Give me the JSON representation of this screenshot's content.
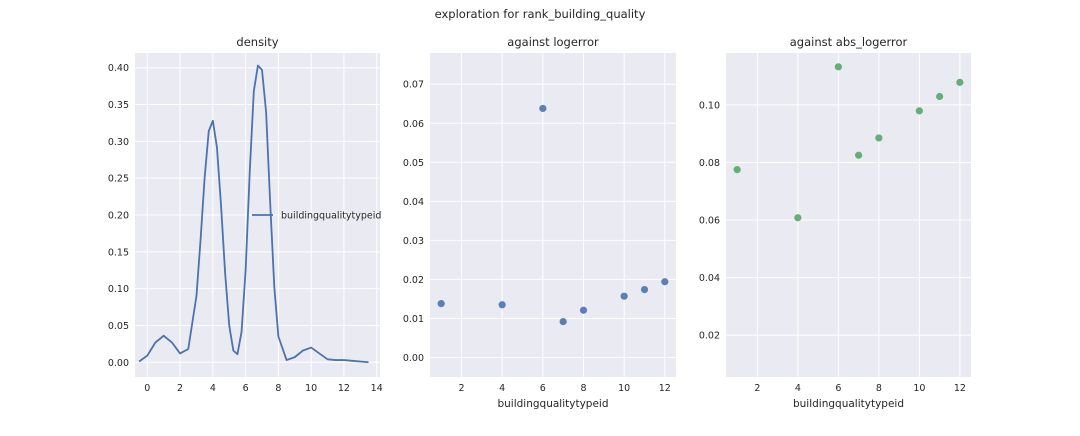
{
  "figure": {
    "suptitle": "exploration for rank_building_quality"
  },
  "chart_data": [
    {
      "type": "line",
      "title": "density",
      "xlabel": "",
      "ylabel": "",
      "xlim": [
        -0.75,
        14.2
      ],
      "ylim": [
        -0.02,
        0.42
      ],
      "xticks": [
        0,
        2,
        4,
        6,
        8,
        10,
        12,
        14
      ],
      "yticks": [
        0.0,
        0.05,
        0.1,
        0.15,
        0.2,
        0.25,
        0.3,
        0.35,
        0.4
      ],
      "ytick_labels": [
        "0.00",
        "0.05",
        "0.10",
        "0.15",
        "0.20",
        "0.25",
        "0.30",
        "0.35",
        "0.40"
      ],
      "legend": {
        "placement": "center-right",
        "entries": [
          "buildingqualitytypeid"
        ]
      },
      "grid": true,
      "series": [
        {
          "name": "buildingqualitytypeid",
          "color": "#4c72b0",
          "x": [
            -0.5,
            0.0,
            0.5,
            1.0,
            1.5,
            2.0,
            2.5,
            3.0,
            3.25,
            3.5,
            3.75,
            4.0,
            4.25,
            4.5,
            4.75,
            5.0,
            5.25,
            5.5,
            5.75,
            6.0,
            6.25,
            6.5,
            6.75,
            7.0,
            7.25,
            7.5,
            7.75,
            8.0,
            8.5,
            9.0,
            9.5,
            10.0,
            10.5,
            11.0,
            11.5,
            12.0,
            12.5,
            13.0,
            13.5
          ],
          "y": [
            0.001,
            0.009,
            0.027,
            0.036,
            0.027,
            0.012,
            0.018,
            0.09,
            0.166,
            0.251,
            0.314,
            0.328,
            0.292,
            0.213,
            0.121,
            0.05,
            0.016,
            0.011,
            0.041,
            0.125,
            0.258,
            0.368,
            0.403,
            0.397,
            0.34,
            0.216,
            0.102,
            0.035,
            0.003,
            0.007,
            0.016,
            0.02,
            0.012,
            0.004,
            0.003,
            0.003,
            0.002,
            0.001,
            0.0
          ]
        }
      ]
    },
    {
      "type": "scatter",
      "title": "against logerror",
      "xlabel": "buildingqualitytypeid",
      "ylabel": "",
      "xlim": [
        0.45,
        12.55
      ],
      "ylim": [
        -0.005,
        0.078
      ],
      "xticks": [
        2,
        4,
        6,
        8,
        10,
        12
      ],
      "yticks": [
        0.0,
        0.01,
        0.02,
        0.03,
        0.04,
        0.05,
        0.06,
        0.07
      ],
      "ytick_labels": [
        "0.00",
        "0.01",
        "0.02",
        "0.03",
        "0.04",
        "0.05",
        "0.06",
        "0.07"
      ],
      "grid": true,
      "series": [
        {
          "color": "#4c72b0",
          "x": [
            1,
            4,
            6,
            7,
            8,
            10,
            11,
            12
          ],
          "y": [
            0.0138,
            0.0135,
            0.0638,
            0.0092,
            0.0121,
            0.0157,
            0.0174,
            0.0194
          ]
        }
      ]
    },
    {
      "type": "scatter",
      "title": "against abs_logerror",
      "xlabel": "buildingqualitytypeid",
      "ylabel": "",
      "xlim": [
        0.45,
        12.55
      ],
      "ylim": [
        0.0055,
        0.118
      ],
      "xticks": [
        2,
        4,
        6,
        8,
        10,
        12
      ],
      "yticks": [
        0.02,
        0.04,
        0.06,
        0.08,
        0.1
      ],
      "ytick_labels": [
        "0.02",
        "0.04",
        "0.06",
        "0.08",
        "0.10"
      ],
      "grid": true,
      "series": [
        {
          "color": "#55a868",
          "x": [
            1,
            4,
            6,
            7,
            8,
            10,
            11,
            12
          ],
          "y": [
            0.0775,
            0.0608,
            0.1132,
            0.0825,
            0.0885,
            0.0979,
            0.1029,
            0.1078
          ]
        }
      ]
    }
  ]
}
